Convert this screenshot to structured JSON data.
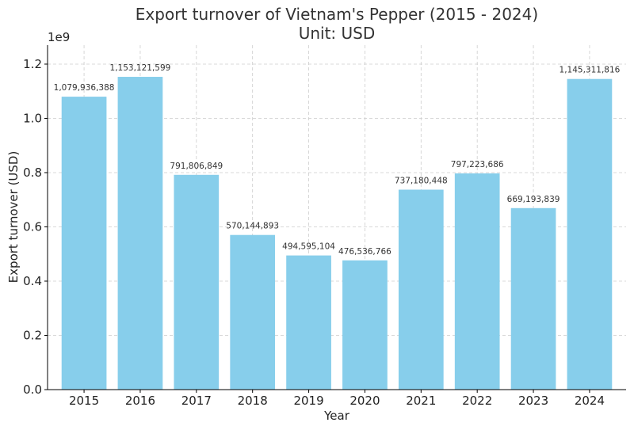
{
  "chart_data": {
    "type": "bar",
    "title_line1": "Export turnover of Vietnam's Pepper (2015 - 2024)",
    "title_line2": "Unit: USD",
    "xlabel": "Year",
    "ylabel": "Export turnover (USD)",
    "y_scale_label": "1e9",
    "categories": [
      "2015",
      "2016",
      "2017",
      "2018",
      "2019",
      "2020",
      "2021",
      "2022",
      "2023",
      "2024"
    ],
    "values": [
      1079936388,
      1153121599,
      791806849,
      570144893,
      494595104,
      476536766,
      737180448,
      797223686,
      669193839,
      1145311816
    ],
    "data_labels": [
      "1,079,936,388",
      "1,153,121,599",
      "791,806,849",
      "570,144,893",
      "494,595,104",
      "476,536,766",
      "737,180,448",
      "797,223,686",
      "669,193,839",
      "1,145,311,816"
    ],
    "y_ticks": [
      0,
      0.2,
      0.4,
      0.6,
      0.8,
      1.0,
      1.2
    ],
    "y_tick_labels": [
      "0.0",
      "0.2",
      "0.4",
      "0.6",
      "0.8",
      "1.0",
      "1.2"
    ],
    "ylim": [
      0,
      1.27
    ],
    "bar_color": "#87CEEB",
    "grid": true
  }
}
